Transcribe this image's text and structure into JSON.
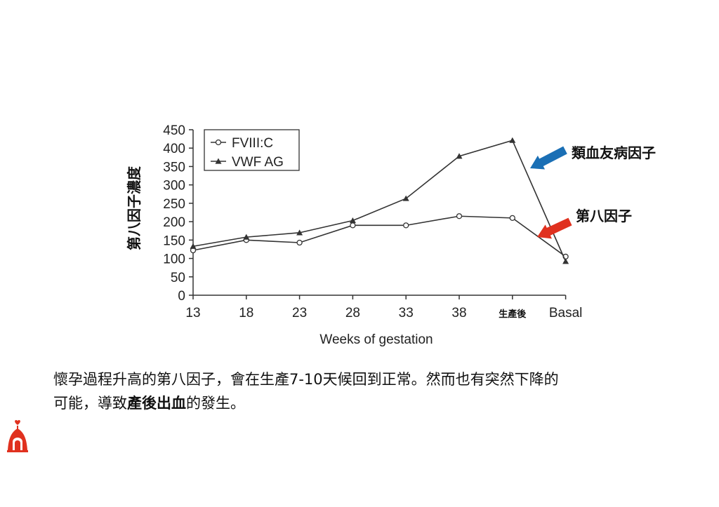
{
  "chart_data": {
    "type": "line",
    "categories": [
      "13",
      "18",
      "23",
      "28",
      "33",
      "38",
      "生產後",
      "Basal"
    ],
    "xlabel": "Weeks of gestation",
    "ylabel": "第八因子濃度",
    "ylim": [
      0,
      450
    ],
    "yticks": [
      0,
      50,
      100,
      150,
      200,
      250,
      300,
      350,
      400,
      450
    ],
    "grid": false,
    "legend_position": "top-left",
    "series": [
      {
        "name": "FVIII:C",
        "marker": "open-circle",
        "values": [
          122,
          150,
          143,
          190,
          190,
          215,
          210,
          105
        ]
      },
      {
        "name": "VWF AG",
        "marker": "filled-triangle",
        "values": [
          133,
          158,
          170,
          203,
          263,
          378,
          421,
          92
        ]
      }
    ],
    "annotations": [
      {
        "text": "類血友病因子",
        "arrow_color": "#1a6fb5",
        "points_to": "VWF AG"
      },
      {
        "text": "第八因子",
        "arrow_color": "#e0311f",
        "points_to": "FVIII:C"
      }
    ]
  },
  "caption": {
    "line1": "懷孕過程升高的第八因子，會在生產7-10天候回到正常。然而也有突然下降的",
    "line2_pre": "可能，導致",
    "line2_bold": "產後出血",
    "line2_post": "的發生。"
  },
  "colors": {
    "line": "#333333",
    "blue_arrow": "#1a6fb5",
    "red_arrow": "#e0311f",
    "logo": "#e0311f"
  },
  "logo_icon": "hospital-logo-icon"
}
